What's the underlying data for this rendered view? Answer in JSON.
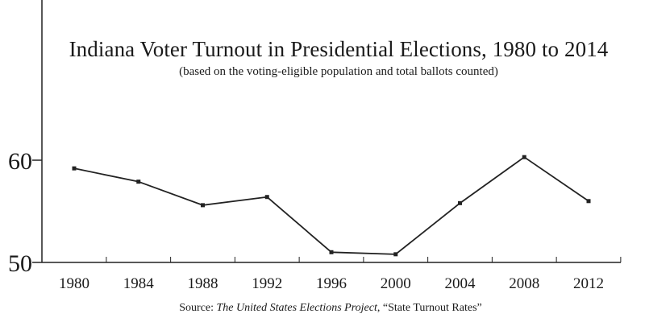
{
  "chart_data": {
    "type": "line",
    "title": "Indiana Voter Turnout in Presidential Elections, 1980 to 2014",
    "subtitle": "(based on the voting-eligible population and total ballots counted)",
    "x": [
      1980,
      1984,
      1988,
      1992,
      1996,
      2000,
      2004,
      2008,
      2012
    ],
    "x_tick_labels": [
      "1980",
      "1984",
      "1988",
      "1992",
      "1996",
      "2000",
      "2004",
      "2008",
      "2012"
    ],
    "series": [
      {
        "values": [
          59.2,
          57.9,
          55.6,
          56.4,
          51.0,
          50.8,
          55.8,
          60.3,
          56.0
        ]
      }
    ],
    "y_ticks": [
      50,
      60
    ],
    "y_tick_labels": [
      "50",
      "60"
    ],
    "ylim": [
      50,
      60
    ],
    "grid": false,
    "colors": {
      "line": "#222222",
      "axis": "#222222"
    }
  },
  "source": {
    "prefix": "Source: ",
    "italic": "The United States Elections Project",
    "suffix": ", “State Turnout Rates”"
  }
}
